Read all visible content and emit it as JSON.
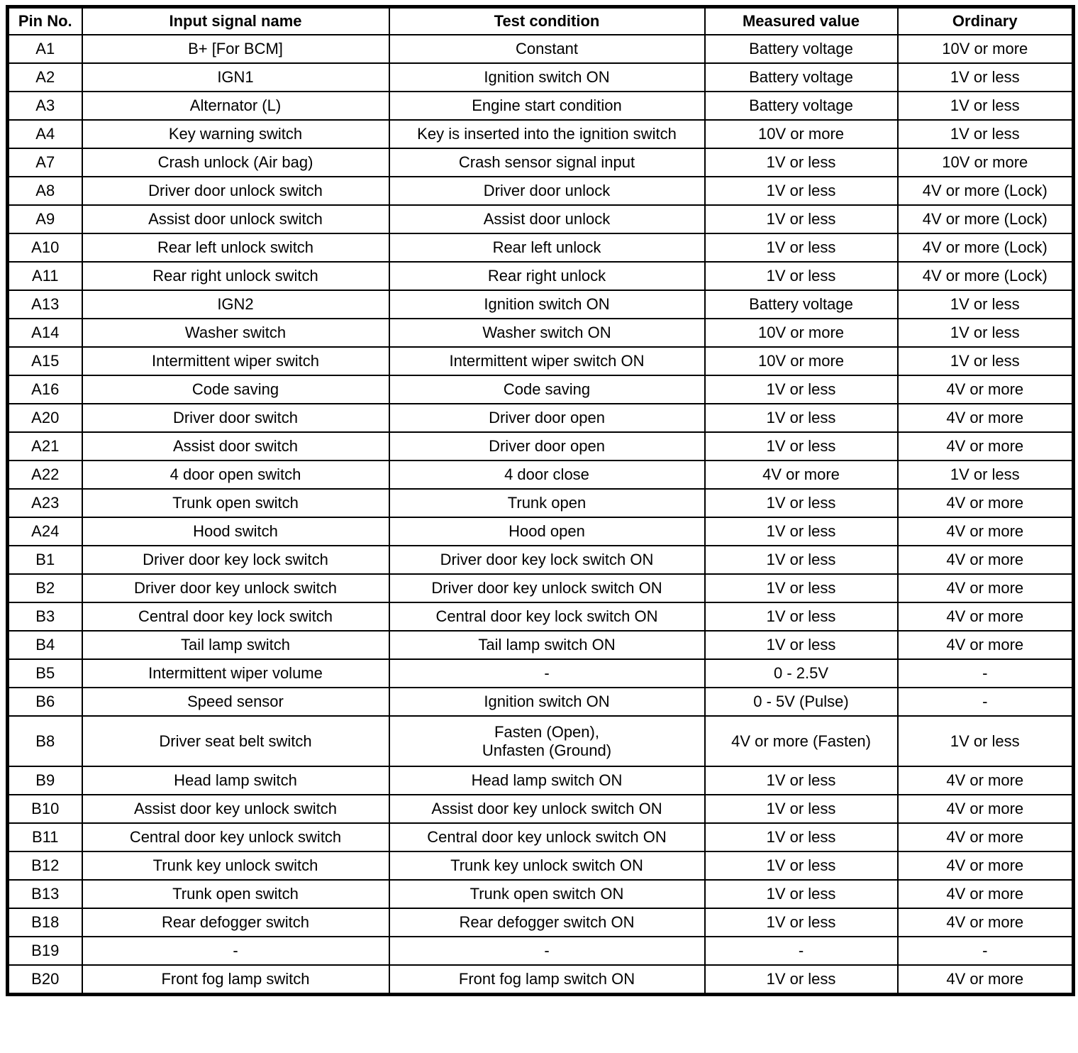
{
  "table": {
    "columns": [
      "Pin No.",
      "Input signal name",
      "Test condition",
      "Measured value",
      "Ordinary"
    ],
    "text_color": "#000000",
    "background_color": "#ffffff",
    "rows": [
      {
        "pin": "A1",
        "signal": "B+ [For BCM]",
        "condition": "Constant",
        "measured": "Battery voltage",
        "ordinary": "10V or more"
      },
      {
        "pin": "A2",
        "signal": "IGN1",
        "condition": "Ignition switch ON",
        "measured": "Battery voltage",
        "ordinary": "1V or less"
      },
      {
        "pin": "A3",
        "signal": "Alternator (L)",
        "condition": "Engine start condition",
        "measured": "Battery voltage",
        "ordinary": "1V or less"
      },
      {
        "pin": "A4",
        "signal": "Key warning switch",
        "condition": "Key is inserted into the ignition switch",
        "measured": "10V or more",
        "ordinary": "1V or less"
      },
      {
        "pin": "A7",
        "signal": "Crash unlock (Air bag)",
        "condition": "Crash sensor signal input",
        "measured": "1V or less",
        "ordinary": "10V or more"
      },
      {
        "pin": "A8",
        "signal": "Driver door unlock switch",
        "condition": "Driver door unlock",
        "measured": "1V or less",
        "ordinary": "4V or more (Lock)"
      },
      {
        "pin": "A9",
        "signal": "Assist door unlock switch",
        "condition": "Assist door unlock",
        "measured": "1V or less",
        "ordinary": "4V or more (Lock)"
      },
      {
        "pin": "A10",
        "signal": "Rear left unlock switch",
        "condition": "Rear left unlock",
        "measured": "1V or less",
        "ordinary": "4V or more (Lock)"
      },
      {
        "pin": "A11",
        "signal": "Rear right unlock switch",
        "condition": "Rear right unlock",
        "measured": "1V or less",
        "ordinary": "4V or more (Lock)"
      },
      {
        "pin": "A13",
        "signal": "IGN2",
        "condition": "Ignition switch ON",
        "measured": "Battery voltage",
        "ordinary": "1V or less"
      },
      {
        "pin": "A14",
        "signal": "Washer switch",
        "condition": "Washer switch ON",
        "measured": "10V or more",
        "ordinary": "1V or less"
      },
      {
        "pin": "A15",
        "signal": "Intermittent wiper switch",
        "condition": "Intermittent wiper switch ON",
        "measured": "10V or more",
        "ordinary": "1V or less"
      },
      {
        "pin": "A16",
        "signal": "Code saving",
        "condition": "Code saving",
        "measured": "1V or less",
        "ordinary": "4V or more"
      },
      {
        "pin": "A20",
        "signal": "Driver door switch",
        "condition": "Driver door open",
        "measured": "1V or less",
        "ordinary": "4V or more"
      },
      {
        "pin": "A21",
        "signal": "Assist door switch",
        "condition": "Driver door open",
        "measured": "1V or less",
        "ordinary": "4V or more"
      },
      {
        "pin": "A22",
        "signal": "4 door open switch",
        "condition": "4 door close",
        "measured": "4V or more",
        "ordinary": "1V or less"
      },
      {
        "pin": "A23",
        "signal": "Trunk open switch",
        "condition": "Trunk open",
        "measured": "1V or less",
        "ordinary": "4V or more"
      },
      {
        "pin": "A24",
        "signal": "Hood switch",
        "condition": "Hood open",
        "measured": "1V or less",
        "ordinary": "4V or more"
      },
      {
        "pin": "B1",
        "signal": "Driver door key lock switch",
        "condition": "Driver door key lock switch ON",
        "measured": "1V or less",
        "ordinary": "4V or more"
      },
      {
        "pin": "B2",
        "signal": "Driver door key unlock switch",
        "condition": "Driver door key unlock switch ON",
        "measured": "1V or less",
        "ordinary": "4V or more"
      },
      {
        "pin": "B3",
        "signal": "Central door key lock switch",
        "condition": "Central door key lock switch ON",
        "measured": "1V or less",
        "ordinary": "4V or more"
      },
      {
        "pin": "B4",
        "signal": "Tail lamp switch",
        "condition": "Tail lamp switch ON",
        "measured": "1V or less",
        "ordinary": "4V or more"
      },
      {
        "pin": "B5",
        "signal": "Intermittent wiper volume",
        "condition": "-",
        "measured": "0 - 2.5V",
        "ordinary": "-"
      },
      {
        "pin": "B6",
        "signal": "Speed sensor",
        "condition": "Ignition switch ON",
        "measured": "0 - 5V (Pulse)",
        "ordinary": "-"
      },
      {
        "pin": "B8",
        "signal": "Driver seat belt switch",
        "condition": "Fasten (Open),\nUnfasten (Ground)",
        "measured": "4V or more (Fasten)",
        "ordinary": "1V or less"
      },
      {
        "pin": "B9",
        "signal": "Head lamp switch",
        "condition": "Head lamp switch ON",
        "measured": "1V or less",
        "ordinary": "4V or more"
      },
      {
        "pin": "B10",
        "signal": "Assist door key unlock switch",
        "condition": "Assist door key unlock switch ON",
        "measured": "1V or less",
        "ordinary": "4V or more"
      },
      {
        "pin": "B11",
        "signal": "Central door key unlock switch",
        "condition": "Central door key unlock switch ON",
        "measured": "1V or less",
        "ordinary": "4V or more"
      },
      {
        "pin": "B12",
        "signal": "Trunk key unlock switch",
        "condition": "Trunk key unlock switch ON",
        "measured": "1V or less",
        "ordinary": "4V or more"
      },
      {
        "pin": "B13",
        "signal": "Trunk open switch",
        "condition": "Trunk open switch ON",
        "measured": "1V or less",
        "ordinary": "4V or more"
      },
      {
        "pin": "B18",
        "signal": "Rear defogger switch",
        "condition": "Rear defogger switch ON",
        "measured": "1V or less",
        "ordinary": "4V or more"
      },
      {
        "pin": "B19",
        "signal": "-",
        "condition": "-",
        "measured": "-",
        "ordinary": "-"
      },
      {
        "pin": "B20",
        "signal": "Front fog lamp switch",
        "condition": "Front fog lamp switch ON",
        "measured": "1V or less",
        "ordinary": "4V or more"
      }
    ]
  }
}
